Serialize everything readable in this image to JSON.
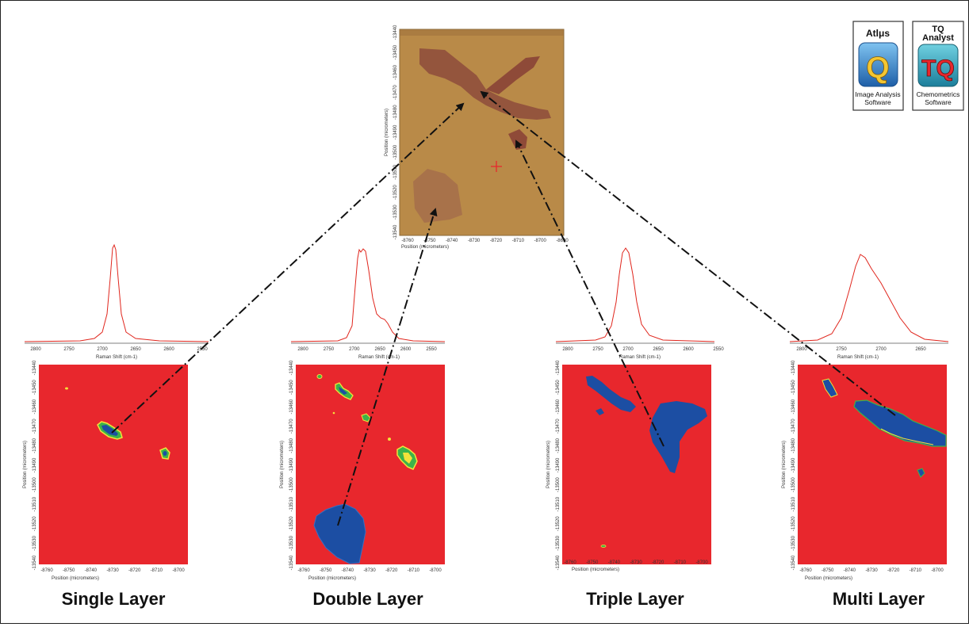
{
  "colors": {
    "map_background": "#e8272d",
    "cluster_fill": "#1c4ea3",
    "cluster_edge_yellow": "#f2e23a",
    "cluster_edge_green": "#3cb34a",
    "spectrum_line": "#e0261d",
    "optical_image": "#b98a48",
    "arrow": "#111111"
  },
  "optical_image": {
    "ylabel": "Position (micrometers)",
    "xlabel": "Position (micrometers)",
    "x_ticks": [
      "-8760",
      "-8750",
      "-8740",
      "-8730",
      "-8720",
      "-8710",
      "-8700",
      "-8690"
    ],
    "y_ticks": [
      "-13440",
      "-13450",
      "-13460",
      "-13470",
      "-13480",
      "-13490",
      "-13500",
      "-13510",
      "-13520",
      "-13530",
      "-13540"
    ]
  },
  "logos": {
    "atlus": {
      "title": "Atlμs",
      "mark": "Q",
      "line1": "Image Analysis",
      "line2": "Software"
    },
    "tq": {
      "title_line1": "TQ",
      "title_line2": "Analyst",
      "mark": "TQ",
      "line1": "Chemometrics",
      "line2": "Software"
    }
  },
  "spectrum_xlabel": "Raman Shift (cm-1)",
  "map_xlabel": "Position (micrometers)",
  "map_ylabel": "Position (micrometers)",
  "map_x_ticks": [
    "-8760",
    "-8750",
    "-8740",
    "-8730",
    "-8720",
    "-8710",
    "-8700"
  ],
  "map_y_ticks": [
    "-13440",
    "-13450",
    "-13460",
    "-13470",
    "-13480",
    "-13490",
    "-13500",
    "-13510",
    "-13520",
    "-13530",
    "-13540"
  ],
  "panels": [
    {
      "label": "Single Layer",
      "spectrum_ticks": [
        "2800",
        "2750",
        "2700",
        "2650",
        "2600",
        "2550"
      ]
    },
    {
      "label": "Double Layer",
      "spectrum_ticks": [
        "2800",
        "2750",
        "2700",
        "2650",
        "2600",
        "2550"
      ]
    },
    {
      "label": "Triple Layer",
      "spectrum_ticks": [
        "2800",
        "2750",
        "2700",
        "2650",
        "2600",
        "2550"
      ]
    },
    {
      "label": "Multi Layer",
      "spectrum_ticks": [
        "2800",
        "2750",
        "2700",
        "2650"
      ]
    }
  ]
}
